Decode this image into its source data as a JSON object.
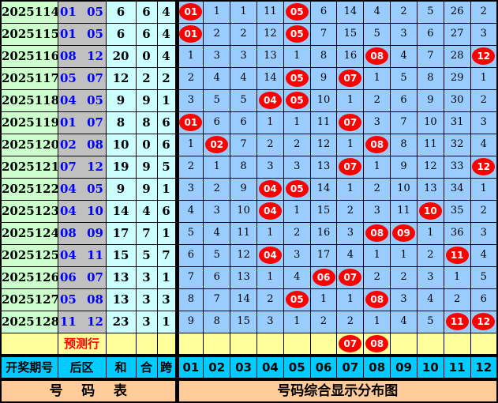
{
  "chart_data": {
    "type": "table",
    "title": "号码综合显示分布图",
    "left_title": "号    码    表",
    "hit_marker": "*",
    "columns": {
      "period": "开奖期号",
      "back": "后区",
      "sum": "和",
      "combine": "合",
      "span": "跨"
    },
    "grid_headers": [
      "01",
      "02",
      "03",
      "04",
      "05",
      "06",
      "07",
      "08",
      "09",
      "10",
      "11",
      "12"
    ],
    "rows": [
      {
        "period": "2025114",
        "back": "01 05",
        "sum": "6",
        "combine": "6",
        "span": "4",
        "cells": [
          "*01",
          "1",
          "1",
          "11",
          "*05",
          "6",
          "14",
          "4",
          "2",
          "5",
          "26",
          "2"
        ]
      },
      {
        "period": "2025115",
        "back": "01 05",
        "sum": "6",
        "combine": "6",
        "span": "4",
        "cells": [
          "*01",
          "2",
          "2",
          "12",
          "*05",
          "7",
          "15",
          "5",
          "3",
          "6",
          "27",
          "3"
        ]
      },
      {
        "period": "2025116",
        "back": "08 12",
        "sum": "20",
        "combine": "0",
        "span": "4",
        "cells": [
          "1",
          "3",
          "3",
          "13",
          "1",
          "8",
          "16",
          "*08",
          "4",
          "7",
          "28",
          "*12"
        ]
      },
      {
        "period": "2025117",
        "back": "05 07",
        "sum": "12",
        "combine": "2",
        "span": "2",
        "cells": [
          "2",
          "4",
          "4",
          "14",
          "*05",
          "9",
          "*07",
          "1",
          "5",
          "8",
          "29",
          "1"
        ]
      },
      {
        "period": "2025118",
        "back": "04 05",
        "sum": "9",
        "combine": "9",
        "span": "1",
        "cells": [
          "3",
          "5",
          "5",
          "*04",
          "*05",
          "10",
          "1",
          "2",
          "6",
          "9",
          "30",
          "2"
        ]
      },
      {
        "period": "2025119",
        "back": "01 07",
        "sum": "8",
        "combine": "8",
        "span": "6",
        "cells": [
          "*01",
          "6",
          "6",
          "1",
          "1",
          "11",
          "*07",
          "3",
          "7",
          "10",
          "31",
          "3"
        ]
      },
      {
        "period": "2025120",
        "back": "02 08",
        "sum": "10",
        "combine": "0",
        "span": "6",
        "cells": [
          "1",
          "*02",
          "7",
          "2",
          "2",
          "12",
          "1",
          "*08",
          "8",
          "11",
          "32",
          "4"
        ]
      },
      {
        "period": "2025121",
        "back": "07 12",
        "sum": "19",
        "combine": "9",
        "span": "5",
        "cells": [
          "2",
          "1",
          "8",
          "3",
          "3",
          "13",
          "*07",
          "1",
          "9",
          "12",
          "33",
          "*12"
        ]
      },
      {
        "period": "2025122",
        "back": "04 05",
        "sum": "9",
        "combine": "9",
        "span": "1",
        "cells": [
          "3",
          "2",
          "9",
          "*04",
          "*05",
          "14",
          "1",
          "2",
          "10",
          "13",
          "34",
          "1"
        ]
      },
      {
        "period": "2025123",
        "back": "04 10",
        "sum": "14",
        "combine": "4",
        "span": "6",
        "cells": [
          "4",
          "3",
          "10",
          "*04",
          "1",
          "15",
          "2",
          "3",
          "11",
          "*10",
          "35",
          "2"
        ]
      },
      {
        "period": "2025124",
        "back": "08 09",
        "sum": "17",
        "combine": "7",
        "span": "1",
        "cells": [
          "5",
          "4",
          "11",
          "1",
          "2",
          "16",
          "3",
          "*08",
          "*09",
          "1",
          "36",
          "3"
        ]
      },
      {
        "period": "2025125",
        "back": "04 11",
        "sum": "15",
        "combine": "5",
        "span": "7",
        "cells": [
          "6",
          "5",
          "12",
          "*04",
          "3",
          "17",
          "4",
          "1",
          "1",
          "2",
          "*11",
          "4"
        ]
      },
      {
        "period": "2025126",
        "back": "06 07",
        "sum": "13",
        "combine": "3",
        "span": "1",
        "cells": [
          "7",
          "6",
          "13",
          "1",
          "4",
          "*06",
          "*07",
          "2",
          "2",
          "3",
          "1",
          "5"
        ]
      },
      {
        "period": "2025127",
        "back": "05 08",
        "sum": "13",
        "combine": "3",
        "span": "3",
        "cells": [
          "8",
          "7",
          "14",
          "2",
          "*05",
          "1",
          "1",
          "*08",
          "3",
          "4",
          "2",
          "6"
        ]
      },
      {
        "period": "2025128",
        "back": "11 12",
        "sum": "23",
        "combine": "3",
        "span": "1",
        "cells": [
          "9",
          "8",
          "15",
          "3",
          "1",
          "2",
          "2",
          "1",
          "4",
          "5",
          "*11",
          "*12"
        ]
      }
    ],
    "prediction_row": {
      "label": "预测行",
      "cells": [
        "",
        "",
        "",
        "",
        "",
        "",
        "*07",
        "*08",
        "",
        "",
        "",
        ""
      ]
    }
  },
  "colors": {
    "period_bg": "#CCFFCC",
    "backzone_bg": "#C0C0C0",
    "stat_bg": "#CCFFFF",
    "grid_bg": "#99CCFF",
    "prediction_bg": "#FFFF99",
    "header_bg": "#00CCFF",
    "footer_bg": "#FFCC99",
    "ball_red": "#FF0000",
    "ball_text": "#FFFFFF",
    "backzone_text": "#0000FF",
    "prediction_text": "#FF0000",
    "grid_line": "#000000"
  }
}
